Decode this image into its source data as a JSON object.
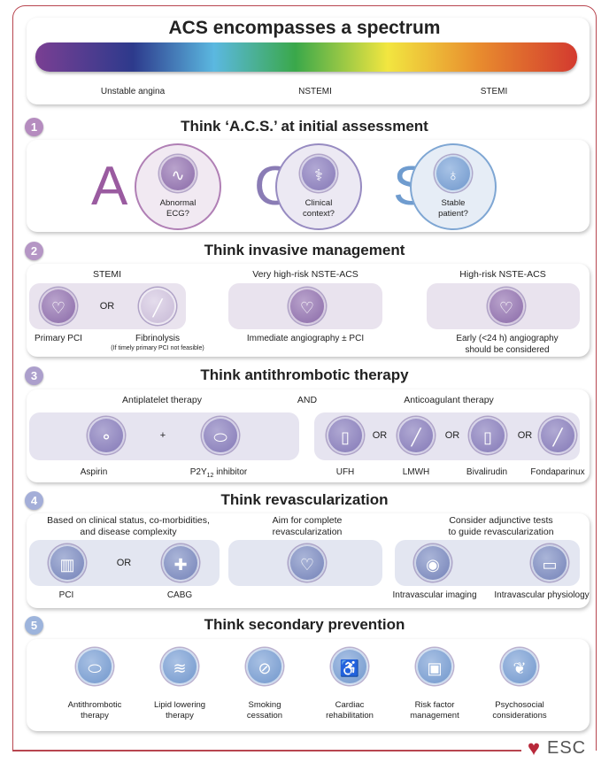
{
  "header": {
    "title": "ACS encompasses a spectrum",
    "spectrum_labels": [
      "Unstable angina",
      "NSTEMI",
      "STEMI"
    ],
    "spectrum_colors": [
      "#7a3f93",
      "#2d3a8c",
      "#5bb8e0",
      "#3aa84a",
      "#f2e640",
      "#e88b2e",
      "#d33a2f"
    ]
  },
  "s1": {
    "num": "1",
    "title": "Think ‘A.C.S.’ at initial assessment",
    "items": [
      {
        "letter": "A",
        "text1": "Abnormal",
        "text2": "ECG?",
        "icon": "ecg-icon",
        "color": "#9a5ba0"
      },
      {
        "letter": "C",
        "text1": "Clinical",
        "text2": "context?",
        "icon": "doctor-patient-icon",
        "color": "#8a7cb5"
      },
      {
        "letter": "S",
        "text1": "Stable",
        "text2": "patient?",
        "icon": "stethoscope-icon",
        "color": "#6f9ccf"
      }
    ]
  },
  "s2": {
    "num": "2",
    "title": "Think invasive management",
    "groups": [
      "STEMI",
      "Very high-risk NSTE-ACS",
      "High-risk NSTE-ACS"
    ],
    "or": "OR",
    "labels": {
      "primary_pci": "Primary PCI",
      "fibrinolysis": "Fibrinolysis",
      "fibrinolysis_note": "(If timely primary PCI not feasible)",
      "immediate": "Immediate angiography ± PCI",
      "early1": "Early (<24 h) angiography",
      "early2": "should be considered"
    }
  },
  "s3": {
    "num": "3",
    "title": "Think antithrombotic therapy",
    "antiplatelet": "Antiplatelet therapy",
    "and": "AND",
    "anticoagulant": "Anticoagulant therapy",
    "plus": "+",
    "or": "OR",
    "labels": {
      "aspirin": "Aspirin",
      "p2y": "P2Y",
      "p2y_sub": "12",
      "p2y_rest": " inhibitor",
      "ufh": "UFH",
      "lmwh": "LMWH",
      "bival": "Bivalirudin",
      "fonda": "Fondaparinux"
    }
  },
  "s4": {
    "num": "4",
    "title": "Think revascularization",
    "h1a": "Based on clinical status, co-morbidities,",
    "h1b": "and disease complexity",
    "h2a": "Aim for complete",
    "h2b": "revascularization",
    "h3a": "Consider adjunctive tests",
    "h3b": "to guide revascularization",
    "or": "OR",
    "labels": {
      "pci": "PCI",
      "cabg": "CABG",
      "imaging": "Intravascular imaging",
      "physiology": "Intravascular physiology"
    }
  },
  "s5": {
    "num": "5",
    "title": "Think secondary prevention",
    "items": [
      {
        "l1": "Antithrombotic",
        "l2": "therapy",
        "icon": "capsule-icon"
      },
      {
        "l1": "Lipid lowering",
        "l2": "therapy",
        "icon": "artery-icon"
      },
      {
        "l1": "Smoking",
        "l2": "cessation",
        "icon": "no-smoking-icon"
      },
      {
        "l1": "Cardiac",
        "l2": "rehabilitation",
        "icon": "exercise-icon"
      },
      {
        "l1": "Risk factor",
        "l2": "management",
        "icon": "pill-bottle-icon"
      },
      {
        "l1": "Psychosocial",
        "l2": "considerations",
        "icon": "brain-icon"
      }
    ]
  },
  "logo": {
    "text": "ESC"
  }
}
